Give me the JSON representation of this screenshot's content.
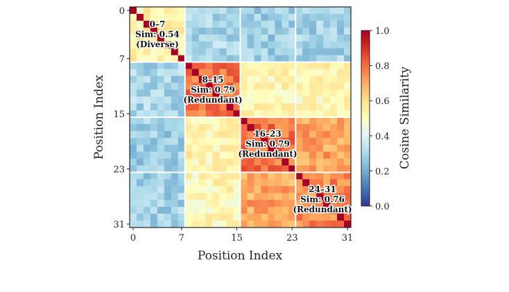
{
  "chart_data": {
    "type": "heatmap",
    "xlabel": "Position Index",
    "ylabel": "Position Index",
    "colorbar_label": "Cosine Similarity",
    "colormap": "RdYlBu_r",
    "vmin": 0.0,
    "vmax": 1.0,
    "size": 32,
    "x_ticks": [
      "0",
      "7",
      "15",
      "23",
      "31"
    ],
    "y_ticks": [
      "0",
      "7",
      "15",
      "23",
      "31"
    ],
    "colorbar_ticks": [
      "0.0",
      "0.2",
      "0.4",
      "0.6",
      "0.8",
      "1.0"
    ],
    "block_boundaries": [
      7.5,
      15.5,
      23.5
    ],
    "diagonal_value": 1.0,
    "block_means": [
      [
        0.54,
        0.3,
        0.28,
        0.29
      ],
      [
        0.3,
        0.79,
        0.53,
        0.52
      ],
      [
        0.28,
        0.53,
        0.79,
        0.71
      ],
      [
        0.29,
        0.52,
        0.71,
        0.76
      ]
    ],
    "annotations": [
      {
        "range": "0–7",
        "sim": "Sim: 0.54",
        "label": "(Diverse)"
      },
      {
        "range": "8–15",
        "sim": "Sim: 0.79",
        "label": "(Redundant)"
      },
      {
        "range": "16–23",
        "sim": "Sim: 0.79",
        "label": "(Redundant)"
      },
      {
        "range": "24–31",
        "sim": "Sim: 0.76",
        "label": "(Redundant)"
      }
    ]
  }
}
